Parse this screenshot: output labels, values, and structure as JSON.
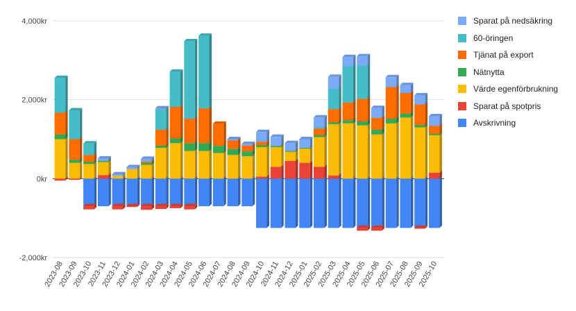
{
  "chart_data": {
    "type": "bar",
    "stacked": true,
    "currency_suffix": "kr",
    "ylim": [
      -2000,
      4000
    ],
    "y_ticks": [
      {
        "value": -2000,
        "label": "-2,000kr"
      },
      {
        "value": 0,
        "label": "0kr"
      },
      {
        "value": 2000,
        "label": "2,000kr"
      },
      {
        "value": 4000,
        "label": "4,000kr"
      }
    ],
    "categories": [
      "2023-08",
      "2023-09",
      "2023-10",
      "2023-11",
      "2023-12",
      "2024-01",
      "2024-02",
      "2024-03",
      "2024-04",
      "2024-05",
      "2024-06",
      "2024-07",
      "2024-08",
      "2024-09",
      "2024-10",
      "2024-11",
      "2024-12",
      "2025-01",
      "2025-02",
      "2025-03",
      "2025-04",
      "2025-05",
      "2025-06",
      "2025-07",
      "2025-08",
      "2025-09",
      "2025-10"
    ],
    "series": [
      {
        "name": "Avskrivning",
        "color": "#4285f4",
        "values": [
          0,
          0,
          -700,
          -700,
          -700,
          -700,
          -700,
          -700,
          -700,
          -700,
          -700,
          -700,
          -700,
          -700,
          -1250,
          -1250,
          -1250,
          -1250,
          -1250,
          -1250,
          -1250,
          -1250,
          -1250,
          -1250,
          -1250,
          -1250,
          -1250
        ]
      },
      {
        "name": "Sparat på spotpris",
        "color": "#ea4335",
        "values": [
          -50,
          -30,
          -80,
          90,
          -80,
          -20,
          -90,
          -70,
          -50,
          -80,
          0,
          0,
          0,
          0,
          50,
          300,
          450,
          400,
          300,
          80,
          0,
          -70,
          -70,
          0,
          0,
          -20,
          150
        ]
      },
      {
        "name": "Värde egenförbrukning",
        "color": "#fbbc04",
        "values": [
          1000,
          400,
          370,
          330,
          70,
          240,
          350,
          780,
          900,
          700,
          700,
          650,
          600,
          570,
          750,
          500,
          230,
          360,
          750,
          1300,
          1400,
          1350,
          1120,
          1400,
          1550,
          1300,
          950
        ]
      },
      {
        "name": "Nätnytta",
        "color": "#34a853",
        "values": [
          120,
          80,
          60,
          30,
          0,
          0,
          50,
          60,
          120,
          200,
          200,
          180,
          150,
          120,
          50,
          30,
          20,
          20,
          50,
          50,
          80,
          100,
          120,
          120,
          100,
          60,
          40
        ]
      },
      {
        "name": "Tjänat på export",
        "color": "#ff6d01",
        "values": [
          550,
          520,
          170,
          0,
          0,
          0,
          30,
          400,
          800,
          620,
          880,
          560,
          220,
          150,
          80,
          0,
          0,
          0,
          170,
          330,
          450,
          570,
          300,
          800,
          520,
          520,
          200
        ]
      },
      {
        "name": "60-öringen",
        "color": "#46bdc6",
        "values": [
          880,
          730,
          290,
          0,
          0,
          0,
          0,
          520,
          890,
          1960,
          1840,
          0,
          0,
          0,
          0,
          0,
          0,
          0,
          30,
          520,
          920,
          850,
          0,
          0,
          0,
          0,
          0
        ]
      },
      {
        "name": "Sparat på nedsäkring",
        "color": "#7baaf7",
        "values": [
          0,
          0,
          0,
          60,
          40,
          50,
          70,
          20,
          0,
          0,
          0,
          0,
          30,
          40,
          250,
          230,
          200,
          220,
          250,
          300,
          230,
          230,
          250,
          250,
          200,
          230,
          240
        ]
      }
    ],
    "legend": {
      "position": "right",
      "order": [
        "Sparat på nedsäkring",
        "60-öringen",
        "Tjänat på export",
        "Nätnytta",
        "Värde egenförbrukning",
        "Sparat på spotpris",
        "Avskrivning"
      ]
    },
    "grid": true
  }
}
